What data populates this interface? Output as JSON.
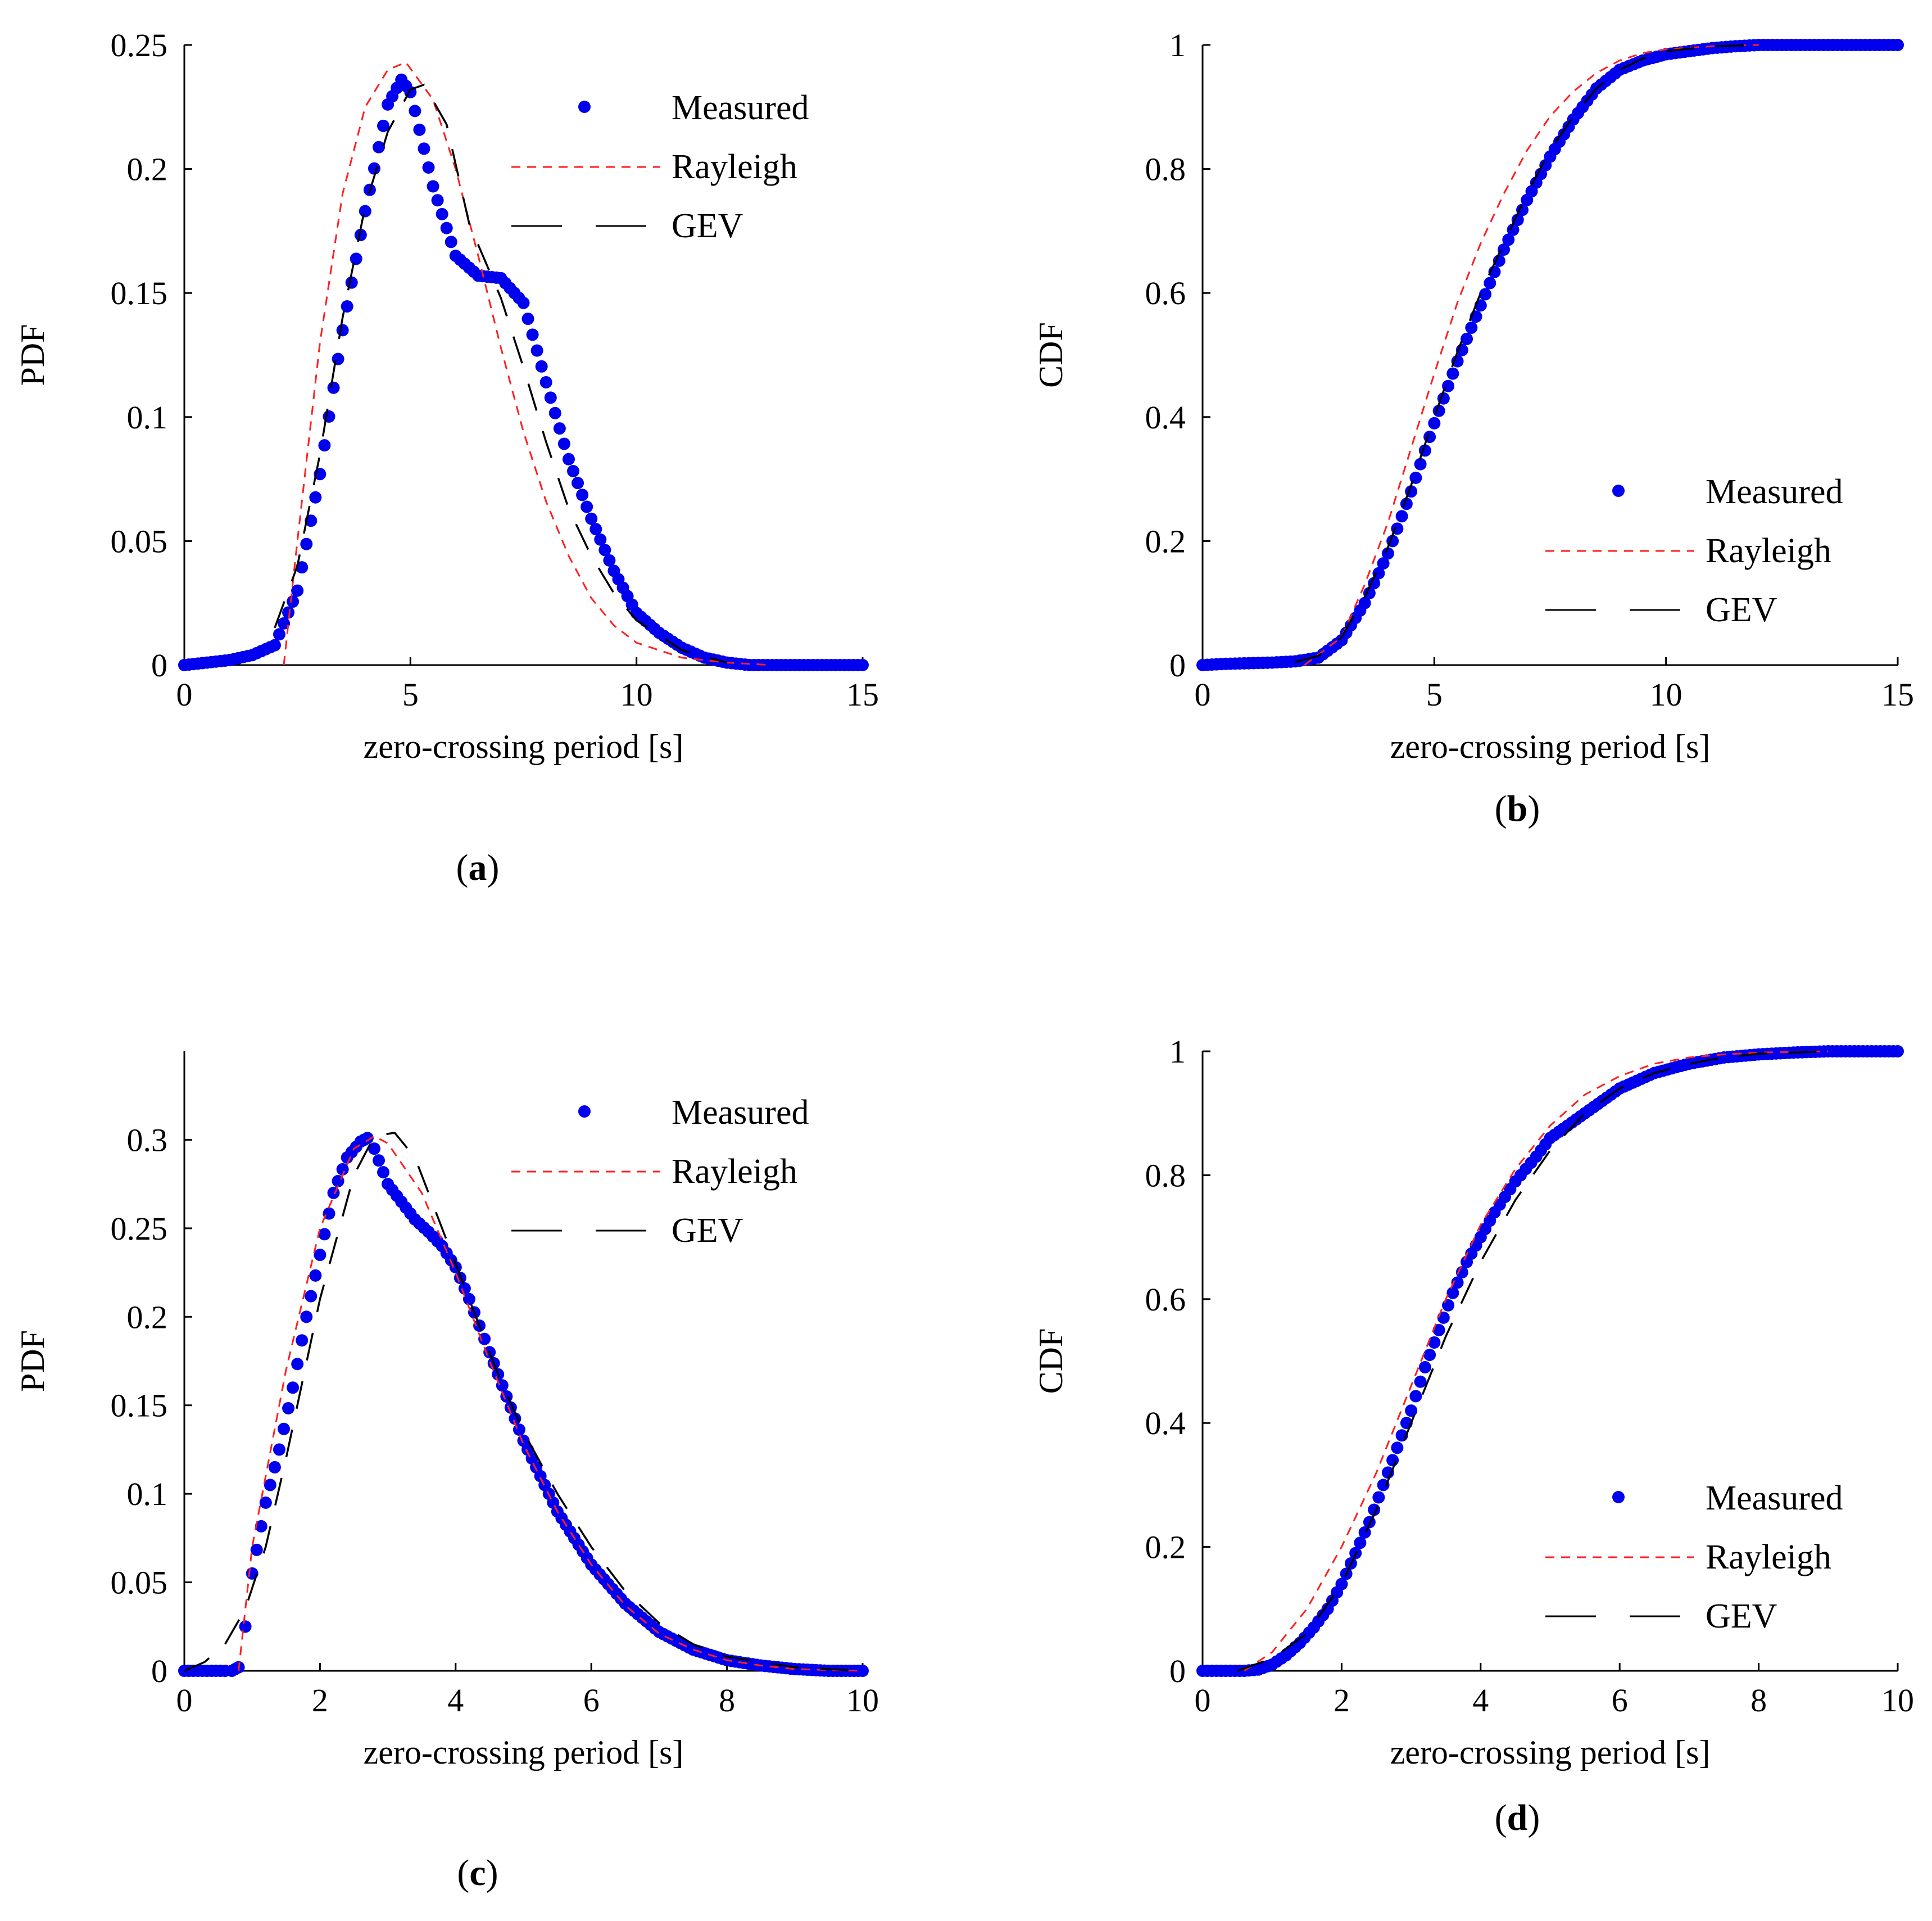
{
  "colors": {
    "measured": "#0000ee",
    "rayleigh": "#ff2020",
    "gev": "#000000"
  },
  "chart_data": [
    {
      "id": "a",
      "type": "scatter",
      "panel_label": "a",
      "xlabel": "zero-crossing period [s]",
      "ylabel": "PDF",
      "xlim": [
        0,
        15
      ],
      "ylim": [
        0,
        0.25
      ],
      "xticks": [
        "0",
        "5",
        "10",
        "15"
      ],
      "yticks": [
        "0",
        "0.05",
        "0.1",
        "0.15",
        "0.2",
        "0.25"
      ],
      "legend_position": "top-right",
      "legend": {
        "measured": "Measured",
        "rayleigh": "Rayleigh",
        "gev": "GEV"
      },
      "series": [
        {
          "name": "Measured",
          "style": "markers",
          "x": [
            0,
            0.5,
            1,
            1.5,
            2,
            2.5,
            3,
            3.5,
            4,
            4.5,
            4.8,
            5,
            5.5,
            6,
            6.5,
            7,
            7.5,
            8,
            8.5,
            9,
            9.5,
            10,
            10.5,
            11,
            11.5,
            12,
            12.5,
            13,
            13.5,
            14,
            14.5,
            15
          ],
          "y": [
            0,
            0.001,
            0.002,
            0.004,
            0.008,
            0.03,
            0.077,
            0.135,
            0.183,
            0.226,
            0.236,
            0.231,
            0.193,
            0.165,
            0.157,
            0.156,
            0.146,
            0.114,
            0.083,
            0.059,
            0.038,
            0.021,
            0.013,
            0.007,
            0.003,
            0.001,
            0,
            0,
            0,
            0,
            0,
            0
          ]
        },
        {
          "name": "Rayleigh",
          "style": "dashed",
          "x": [
            2.2,
            2.5,
            3,
            3.5,
            4,
            4.5,
            4.9,
            5.5,
            6,
            6.5,
            7,
            7.5,
            8,
            8.5,
            9,
            9.5,
            10,
            11,
            12,
            13
          ],
          "y": [
            0,
            0.05,
            0.13,
            0.19,
            0.225,
            0.24,
            0.243,
            0.228,
            0.2,
            0.165,
            0.128,
            0.094,
            0.066,
            0.044,
            0.027,
            0.016,
            0.009,
            0.003,
            0.001,
            0
          ]
        },
        {
          "name": "GEV",
          "style": "long-dash",
          "x": [
            2,
            2.5,
            3,
            3.5,
            4,
            4.5,
            5,
            5.3,
            5.8,
            6.3,
            7,
            7.5,
            8,
            8.5,
            9,
            9.5,
            10,
            11,
            12
          ],
          "y": [
            0.015,
            0.04,
            0.085,
            0.14,
            0.185,
            0.215,
            0.232,
            0.234,
            0.218,
            0.178,
            0.148,
            0.12,
            0.09,
            0.063,
            0.044,
            0.029,
            0.018,
            0.006,
            0.001
          ]
        }
      ]
    },
    {
      "id": "b",
      "type": "scatter",
      "panel_label": "b",
      "xlabel": "zero-crossing period [s]",
      "ylabel": "CDF",
      "xlim": [
        0,
        15
      ],
      "ylim": [
        0,
        1
      ],
      "xticks": [
        "0",
        "5",
        "10",
        "15"
      ],
      "yticks": [
        "0",
        "0.2",
        "0.4",
        "0.6",
        "0.8",
        "1"
      ],
      "legend_position": "center-right",
      "legend": {
        "measured": "Measured",
        "rayleigh": "Rayleigh",
        "gev": "GEV"
      },
      "series": [
        {
          "name": "Measured",
          "style": "markers",
          "x": [
            0,
            0.5,
            1,
            1.5,
            2,
            2.5,
            3,
            3.5,
            4,
            4.5,
            5,
            5.5,
            6,
            6.5,
            7,
            7.5,
            8,
            8.5,
            9,
            9.5,
            10,
            10.5,
            11,
            11.5,
            12,
            12.5,
            13,
            13.5,
            14,
            14.5,
            15
          ],
          "y": [
            0,
            0.002,
            0.003,
            0.004,
            0.006,
            0.012,
            0.04,
            0.1,
            0.18,
            0.28,
            0.39,
            0.49,
            0.58,
            0.67,
            0.75,
            0.82,
            0.88,
            0.93,
            0.96,
            0.975,
            0.985,
            0.99,
            0.995,
            0.998,
            1,
            1,
            1,
            1,
            1,
            1,
            1
          ]
        },
        {
          "name": "Rayleigh",
          "style": "dashed",
          "x": [
            2.2,
            3,
            3.5,
            4,
            4.5,
            5,
            5.5,
            6,
            6.5,
            7,
            7.5,
            8,
            8.5,
            9,
            9.5,
            10,
            11,
            12
          ],
          "y": [
            0,
            0.045,
            0.13,
            0.23,
            0.35,
            0.47,
            0.585,
            0.68,
            0.76,
            0.83,
            0.885,
            0.925,
            0.955,
            0.975,
            0.987,
            0.993,
            0.998,
            1
          ]
        },
        {
          "name": "GEV",
          "style": "long-dash",
          "x": [
            2,
            2.5,
            3,
            3.5,
            4,
            4.5,
            5,
            5.5,
            6,
            6.5,
            7,
            7.5,
            8,
            8.5,
            9,
            9.5,
            10,
            11,
            12
          ],
          "y": [
            0.005,
            0.015,
            0.045,
            0.11,
            0.19,
            0.29,
            0.4,
            0.505,
            0.6,
            0.68,
            0.76,
            0.83,
            0.885,
            0.93,
            0.96,
            0.978,
            0.99,
            0.998,
            1
          ]
        }
      ]
    },
    {
      "id": "c",
      "type": "scatter",
      "panel_label": "c",
      "xlabel": "zero-crossing period [s]",
      "ylabel": "PDF",
      "xlim": [
        0,
        10
      ],
      "ylim": [
        0,
        0.35
      ],
      "xticks": [
        "0",
        "2",
        "4",
        "6",
        "8",
        "10"
      ],
      "yticks": [
        "0",
        "0.05",
        "0.1",
        "0.15",
        "0.2",
        "0.25",
        "0.3"
      ],
      "legend_position": "top-right",
      "legend": {
        "measured": "Measured",
        "rayleigh": "Rayleigh",
        "gev": "GEV"
      },
      "series": [
        {
          "name": "Measured",
          "style": "markers",
          "x": [
            0,
            0.2,
            0.4,
            0.6,
            0.7,
            0.8,
            0.9,
            1,
            1.2,
            1.4,
            1.6,
            1.8,
            2,
            2.2,
            2.4,
            2.6,
            2.7,
            2.8,
            3,
            3.2,
            3.4,
            3.6,
            3.8,
            4,
            4.2,
            4.5,
            5,
            5.5,
            6,
            6.5,
            7,
            7.5,
            8,
            8.5,
            9,
            9.5,
            10
          ],
          "y": [
            0,
            0,
            0,
            0,
            0,
            0.002,
            0.025,
            0.055,
            0.095,
            0.125,
            0.16,
            0.2,
            0.235,
            0.27,
            0.29,
            0.299,
            0.301,
            0.295,
            0.275,
            0.265,
            0.255,
            0.248,
            0.24,
            0.228,
            0.21,
            0.18,
            0.13,
            0.09,
            0.06,
            0.038,
            0.022,
            0.012,
            0.006,
            0.003,
            0.001,
            0,
            0
          ]
        },
        {
          "name": "Rayleigh",
          "style": "dashed",
          "x": [
            0.8,
            1,
            1.5,
            2,
            2.5,
            2.8,
            3,
            3.5,
            4,
            4.5,
            5,
            5.5,
            6,
            6.5,
            7,
            7.5,
            8,
            8.5,
            9,
            10
          ],
          "y": [
            0,
            0.07,
            0.17,
            0.25,
            0.295,
            0.302,
            0.298,
            0.27,
            0.225,
            0.175,
            0.128,
            0.09,
            0.06,
            0.037,
            0.021,
            0.012,
            0.006,
            0.003,
            0.001,
            0
          ]
        },
        {
          "name": "GEV",
          "style": "long-dash",
          "x": [
            0,
            0.3,
            0.6,
            0.9,
            1.2,
            1.5,
            2,
            2.5,
            2.8,
            3.1,
            3.4,
            3.8,
            4.2,
            4.6,
            5,
            5.5,
            6,
            6.5,
            7,
            7.5,
            8,
            9,
            10
          ],
          "y": [
            0,
            0.005,
            0.015,
            0.035,
            0.07,
            0.12,
            0.21,
            0.28,
            0.302,
            0.304,
            0.29,
            0.25,
            0.21,
            0.17,
            0.135,
            0.1,
            0.07,
            0.045,
            0.027,
            0.015,
            0.008,
            0.002,
            0
          ]
        }
      ]
    },
    {
      "id": "d",
      "type": "scatter",
      "panel_label": "d",
      "xlabel": "zero-crossing period [s]",
      "ylabel": "CDF",
      "xlim": [
        0,
        10
      ],
      "ylim": [
        0,
        1
      ],
      "xticks": [
        "0",
        "2",
        "4",
        "6",
        "8",
        "10"
      ],
      "yticks": [
        "0",
        "0.2",
        "0.4",
        "0.6",
        "0.8",
        "1"
      ],
      "legend_position": "center-right",
      "legend": {
        "measured": "Measured",
        "rayleigh": "Rayleigh",
        "gev": "GEV"
      },
      "series": [
        {
          "name": "Measured",
          "style": "markers",
          "x": [
            0,
            0.2,
            0.4,
            0.6,
            0.8,
            1,
            1.2,
            1.4,
            1.6,
            1.8,
            2,
            2.2,
            2.4,
            2.6,
            2.8,
            3,
            3.2,
            3.4,
            3.6,
            3.8,
            4,
            4.2,
            4.5,
            4.8,
            5,
            5.5,
            6,
            6.5,
            7,
            7.5,
            8,
            8.5,
            9,
            9.5,
            10
          ],
          "y": [
            0,
            0,
            0,
            0,
            0.002,
            0.01,
            0.025,
            0.045,
            0.07,
            0.1,
            0.14,
            0.19,
            0.24,
            0.3,
            0.36,
            0.42,
            0.49,
            0.55,
            0.61,
            0.66,
            0.7,
            0.74,
            0.79,
            0.83,
            0.86,
            0.9,
            0.94,
            0.965,
            0.98,
            0.99,
            0.995,
            0.998,
            1,
            1,
            1
          ]
        },
        {
          "name": "Rayleigh",
          "style": "dashed",
          "x": [
            0.6,
            1,
            1.5,
            2,
            2.5,
            3,
            3.5,
            4,
            4.5,
            5,
            5.5,
            6,
            6.5,
            7,
            7.5,
            8,
            9
          ],
          "y": [
            0,
            0.03,
            0.1,
            0.2,
            0.32,
            0.46,
            0.6,
            0.72,
            0.81,
            0.88,
            0.93,
            0.96,
            0.98,
            0.99,
            0.995,
            0.998,
            1
          ]
        },
        {
          "name": "GEV",
          "style": "long-dash",
          "x": [
            0.5,
            1,
            1.5,
            2,
            2.5,
            3,
            3.5,
            4,
            4.5,
            5,
            5.5,
            6,
            6.5,
            7,
            7.5,
            8,
            9
          ],
          "y": [
            0,
            0.02,
            0.06,
            0.14,
            0.26,
            0.4,
            0.54,
            0.66,
            0.76,
            0.84,
            0.9,
            0.94,
            0.965,
            0.98,
            0.99,
            0.996,
            1
          ]
        }
      ]
    }
  ]
}
